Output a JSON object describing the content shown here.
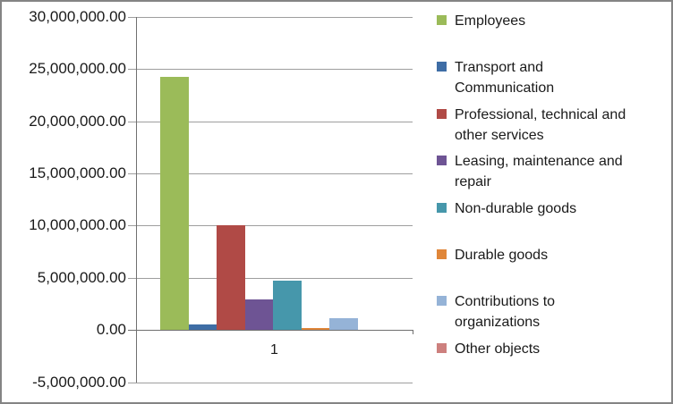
{
  "frame": {
    "background": "#FFFFFF",
    "border_color": "#848484"
  },
  "chart_data": {
    "type": "bar",
    "title": "",
    "categories": [
      "1"
    ],
    "series": [
      {
        "name": "Employees",
        "legend_label": "Employees",
        "value": 24250000,
        "color": "#9BBB59"
      },
      {
        "name": "Transport and Communication",
        "legend_label": "Transport and\nCommunication",
        "value": 550000,
        "color": "#3E6DA5"
      },
      {
        "name": "Professional, technical and other services",
        "legend_label": "Professional, technical and\nother services",
        "value": 10000000,
        "color": "#B04A46"
      },
      {
        "name": "Leasing, maintenance and repair",
        "legend_label": "Leasing, maintenance and\nrepair",
        "value": 2950000,
        "color": "#6E5494"
      },
      {
        "name": "Non-durable goods",
        "legend_label": "Non-durable goods",
        "value": 4700000,
        "color": "#4697AB"
      },
      {
        "name": "Durable goods",
        "legend_label": "Durable goods",
        "value": 200000,
        "color": "#E08639"
      },
      {
        "name": "Contributions to organizations",
        "legend_label": "Contributions to\norganizations",
        "value": 1100000,
        "color": "#95B3D7"
      },
      {
        "name": "Other objects",
        "legend_label": "Other objects",
        "value": 0,
        "color": "#CD807E"
      }
    ],
    "y_axis": {
      "min": -5000000,
      "max": 30000000,
      "step": 5000000,
      "tick_values": [
        30000000,
        25000000,
        20000000,
        15000000,
        10000000,
        5000000,
        0,
        -5000000
      ],
      "tick_labels": [
        "30,000,000.00",
        "25,000,000.00",
        "20,000,000.00",
        "15,000,000.00",
        "10,000,000.00",
        "5,000,000.00",
        "0.00",
        "-5,000,000.00"
      ]
    },
    "x_axis": {
      "category_label": "1"
    },
    "grid": true,
    "legend_position": "right",
    "colors": {
      "gridline": "#9E9E9E",
      "axis_line": "#6F6F6F",
      "text": "#1A1A1A"
    }
  }
}
